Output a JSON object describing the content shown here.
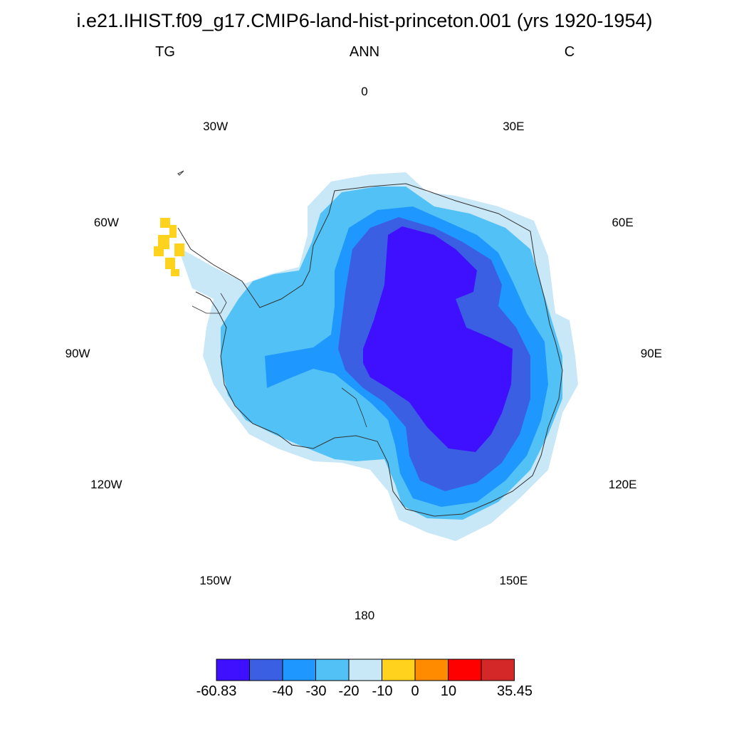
{
  "title": "i.e21.IHIST.f09_g17.CMIP6-land-hist-princeton.001 (yrs 1920-1954)",
  "subtitle": {
    "left": "TG",
    "center": "ANN",
    "right": "C"
  },
  "longitude_labels": [
    "0",
    "30E",
    "60E",
    "90E",
    "120E",
    "150E",
    "180",
    "150W",
    "120W",
    "90W",
    "60W",
    "30W"
  ],
  "colorbar": {
    "colors": [
      "#3f0fff",
      "#3b5fe3",
      "#1e97ff",
      "#52c1f5",
      "#c8e7f7",
      "#ffd21e",
      "#ff8c00",
      "#ff0000",
      "#d42828"
    ],
    "labels": [
      "-60.83",
      "-40",
      "-30",
      "-20",
      "-10",
      "0",
      "10",
      "35.45"
    ]
  },
  "map_colors": {
    "coastline": "#333333",
    "peninsula": "#ffd21e"
  }
}
